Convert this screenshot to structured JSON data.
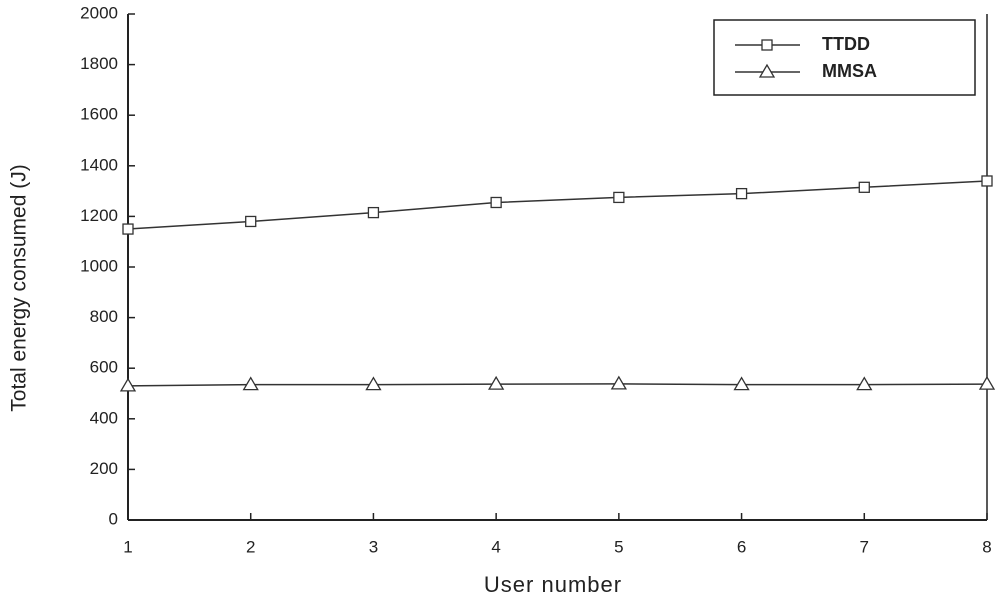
{
  "chart_data": {
    "type": "line",
    "x_label": "User number",
    "y_label": "Total energy consumed (J)",
    "x": [
      1,
      2,
      3,
      4,
      5,
      6,
      7,
      8
    ],
    "series": [
      {
        "name": "TTDD",
        "color": "#333333",
        "marker": "square",
        "values": [
          1150,
          1180,
          1215,
          1255,
          1275,
          1290,
          1315,
          1340
        ]
      },
      {
        "name": "MMSA",
        "color": "#333333",
        "marker": "triangle",
        "values": [
          530,
          535,
          535,
          537,
          538,
          535,
          535,
          537
        ]
      }
    ],
    "xlim": [
      1,
      8
    ],
    "xticks": [
      1,
      2,
      3,
      4,
      5,
      6,
      7,
      8
    ],
    "ylim": [
      0,
      2000
    ],
    "yticks": [
      0,
      200,
      400,
      600,
      800,
      1000,
      1200,
      1400,
      1600,
      1800,
      2000
    ],
    "legend": "top-right"
  }
}
